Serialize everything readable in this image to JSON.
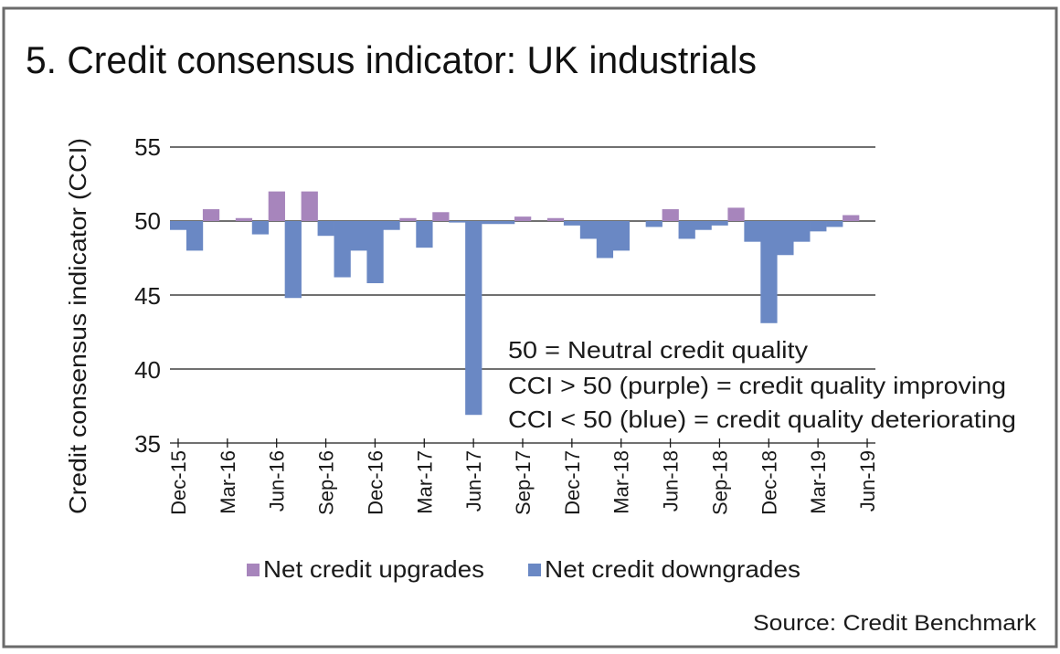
{
  "chart_data": {
    "type": "bar",
    "title": "5. Credit consensus indicator: UK industrials",
    "xlabel": "",
    "ylabel": "Credit consensus indicator (CCI)",
    "ylim": [
      35,
      55
    ],
    "baseline": 50,
    "yticks": [
      "55",
      "50",
      "45",
      "40",
      "35"
    ],
    "ytick_values": [
      55,
      50,
      45,
      40,
      35
    ],
    "grid": true,
    "categories": [
      "Dec-15",
      "Jan-16",
      "Feb-16",
      "Mar-16",
      "Apr-16",
      "May-16",
      "Jun-16",
      "Jul-16",
      "Aug-16",
      "Sep-16",
      "Oct-16",
      "Nov-16",
      "Dec-16",
      "Jan-17",
      "Feb-17",
      "Mar-17",
      "Apr-17",
      "May-17",
      "Jun-17",
      "Jul-17",
      "Aug-17",
      "Sep-17",
      "Oct-17",
      "Nov-17",
      "Dec-17",
      "Jan-18",
      "Feb-18",
      "Mar-18",
      "Apr-18",
      "May-18",
      "Jun-18",
      "Jul-18",
      "Aug-18",
      "Sep-18",
      "Oct-18",
      "Nov-18",
      "Dec-18",
      "Jan-19",
      "Feb-19",
      "Mar-19",
      "Apr-19",
      "May-19",
      "Jun-19"
    ],
    "xtick_labels": [
      "Dec-15",
      "Mar-16",
      "Jun-16",
      "Sep-16",
      "Dec-16",
      "Mar-17",
      "Jun-17",
      "Sep-17",
      "Dec-17",
      "Mar-18",
      "Jun-18",
      "Sep-18",
      "Dec-18",
      "Mar-19",
      "Jun-19"
    ],
    "values": [
      49.4,
      48.0,
      50.8,
      50.0,
      50.2,
      49.1,
      52.0,
      44.8,
      52.0,
      49.0,
      46.2,
      48.0,
      45.8,
      49.4,
      50.2,
      48.2,
      50.6,
      49.9,
      36.9,
      49.8,
      49.8,
      50.3,
      50.0,
      50.2,
      49.7,
      48.8,
      47.5,
      48.0,
      50.0,
      49.6,
      50.8,
      48.8,
      49.4,
      49.7,
      50.9,
      48.6,
      43.1,
      47.7,
      48.6,
      49.3,
      49.6,
      50.4,
      50.0
    ],
    "series": [
      {
        "name": "Net credit upgrades",
        "color": "#a785bc",
        "rule": "value > 50"
      },
      {
        "name": "Net credit downgrades",
        "color": "#6a88c4",
        "rule": "value < 50"
      }
    ],
    "legend_position": "bottom",
    "annotations": [
      "50 = Neutral credit quality",
      "CCI > 50 (purple) = credit quality improving",
      "CCI < 50 (blue) = credit quality deteriorating"
    ],
    "source": "Source: Credit Benchmark"
  },
  "colors": {
    "upgrade": "#a785bc",
    "downgrade": "#6a88c4",
    "frame": "#6b6b6b"
  }
}
